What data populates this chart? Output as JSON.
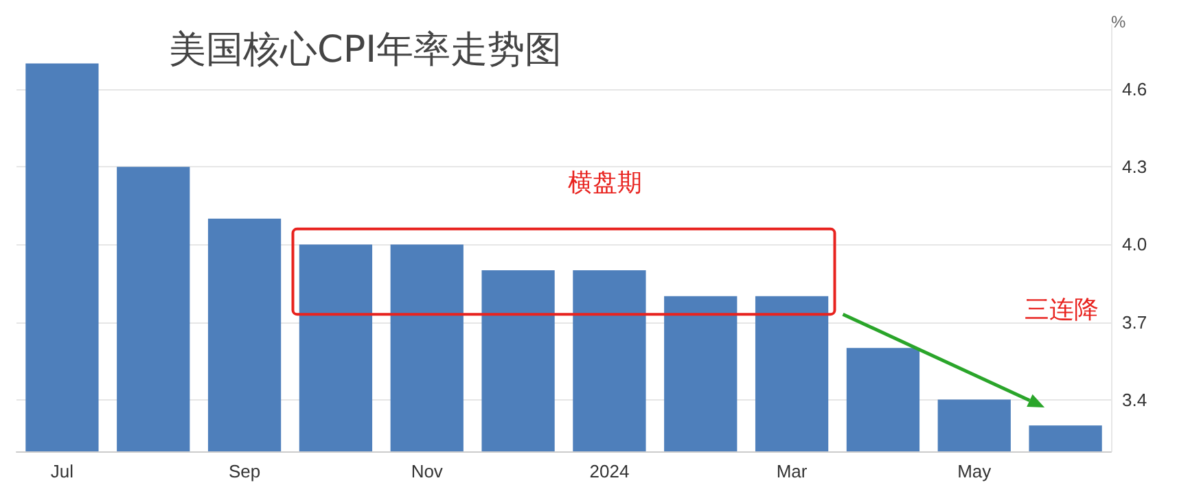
{
  "chart_data": {
    "type": "bar",
    "title": "美国核心CPI年率走势图",
    "ylabel": "%",
    "categories": [
      "Jul",
      null,
      "Sep",
      null,
      "Nov",
      null,
      "2024",
      null,
      "Mar",
      null,
      "May",
      null
    ],
    "values": [
      4.7,
      4.3,
      4.1,
      4.0,
      4.0,
      3.9,
      3.9,
      3.8,
      3.8,
      3.6,
      3.4,
      3.3
    ],
    "color": "#4e7fbb",
    "ylim": [
      3.2,
      4.85
    ],
    "yticks": [
      {
        "value": 3.4,
        "label": "3.4"
      },
      {
        "value": 3.7,
        "label": "3.7"
      },
      {
        "value": 4,
        "label": "4.0"
      },
      {
        "value": 4.3,
        "label": "4.3"
      },
      {
        "value": 4.6,
        "label": "4.6"
      }
    ],
    "grid": "y",
    "annotations": [
      "横盘期",
      "三连降"
    ]
  }
}
